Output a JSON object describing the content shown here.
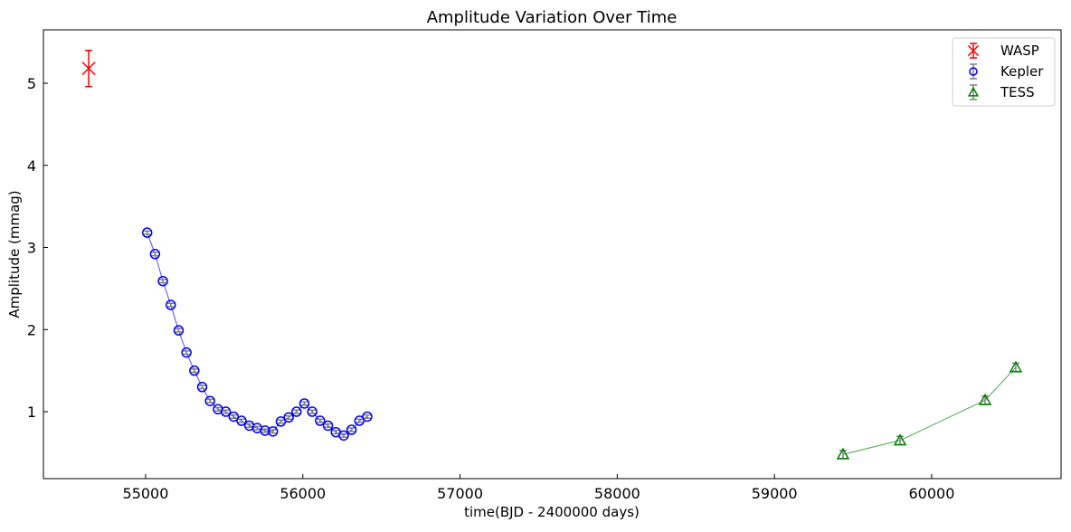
{
  "chart_data": {
    "type": "scatter",
    "title": "Amplitude Variation Over Time",
    "xlabel": "time(BJD - 2400000 days)",
    "ylabel": "Amplitude (mmag)",
    "xlim": [
      54350,
      60823
    ],
    "ylim": [
      0.185,
      5.65
    ],
    "xticks": [
      55000,
      56000,
      57000,
      58000,
      59000,
      60000
    ],
    "yticks": [
      1,
      2,
      3,
      4,
      5
    ],
    "grid": false,
    "legend_position": "top-right",
    "series": [
      {
        "name": "WASP",
        "marker": "x",
        "color": "#ff0000",
        "line": false,
        "x": [
          54638
        ],
        "y": [
          5.18
        ],
        "err": [
          0.22
        ]
      },
      {
        "name": "Kepler",
        "marker": "o",
        "color": "#0000ff",
        "line": true,
        "x": [
          55010,
          55060,
          55110,
          55160,
          55210,
          55260,
          55310,
          55360,
          55410,
          55460,
          55510,
          55560,
          55610,
          55660,
          55710,
          55760,
          55810,
          55860,
          55910,
          55960,
          56010,
          56060,
          56110,
          56160,
          56210,
          56260,
          56310,
          56360,
          56410
        ],
        "y": [
          3.18,
          2.92,
          2.59,
          2.3,
          1.99,
          1.72,
          1.5,
          1.3,
          1.13,
          1.03,
          1.0,
          0.94,
          0.89,
          0.83,
          0.8,
          0.77,
          0.76,
          0.88,
          0.93,
          1.0,
          1.1,
          1.0,
          0.89,
          0.83,
          0.75,
          0.71,
          0.78,
          0.89,
          0.94
        ],
        "err": 0.02
      },
      {
        "name": "TESS",
        "marker": "^",
        "color": "#008000",
        "line": true,
        "x": [
          59436,
          59799,
          60340,
          60535
        ],
        "y": [
          0.48,
          0.65,
          1.14,
          1.54
        ],
        "err": 0.05
      }
    ]
  }
}
